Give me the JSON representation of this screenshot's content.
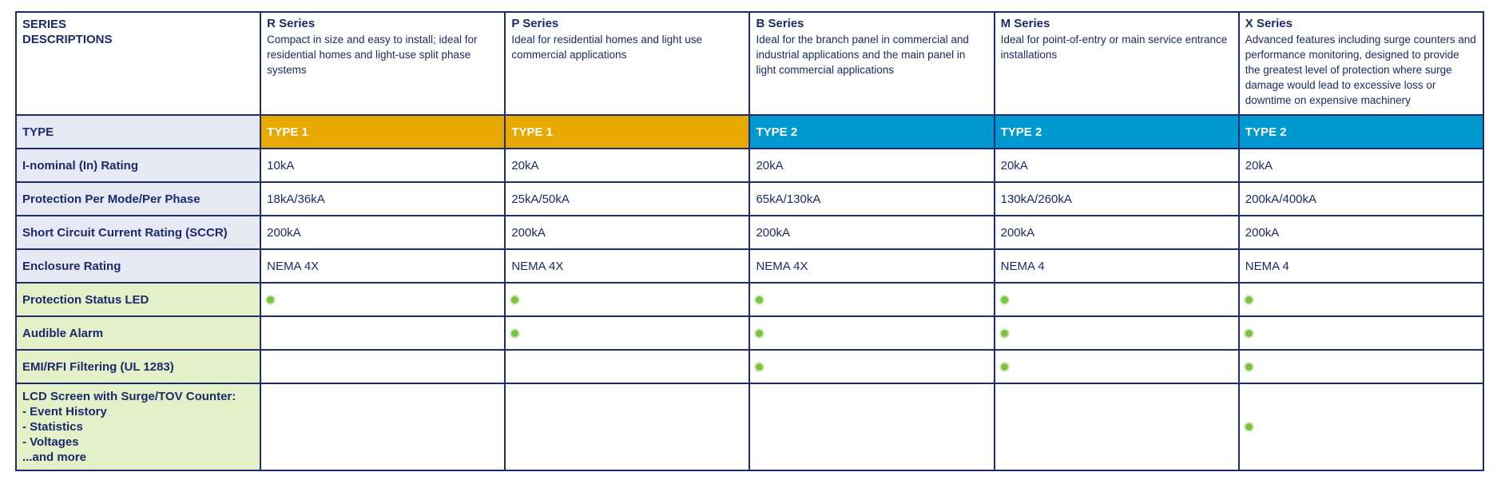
{
  "table": {
    "corner": [
      "SERIES",
      "DESCRIPTIONS"
    ],
    "series": [
      {
        "name": "R Series",
        "description": "Compact in size and easy to install; ideal for residential homes and light-use split phase systems"
      },
      {
        "name": "P Series",
        "description": "Ideal for residential homes and light use commercial applications"
      },
      {
        "name": "B Series",
        "description": "Ideal for the branch panel in commercial and industrial applications and the main panel in light commercial applications"
      },
      {
        "name": "M Series",
        "description": "Ideal for point-of-entry or main service entrance installations"
      },
      {
        "name": "X Series",
        "description": "Advanced features including surge counters and performance monitoring, designed to provide the greatest level of protection where surge damage would lead to excessive loss or downtime on expensive machinery"
      }
    ],
    "type_row": {
      "label": "TYPE",
      "values": [
        "TYPE 1",
        "TYPE 1",
        "TYPE 2",
        "TYPE 2",
        "TYPE 2"
      ],
      "colors": [
        "#e8a800",
        "#e8a800",
        "#0099cf",
        "#0099cf",
        "#0099cf"
      ]
    },
    "spec_rows": [
      {
        "label": "I-nominal (In) Rating",
        "values": [
          "10kA",
          "20kA",
          "20kA",
          "20kA",
          "20kA"
        ]
      },
      {
        "label": "Protection Per Mode/Per Phase",
        "values": [
          "18kA/36kA",
          "25kA/50kA",
          "65kA/130kA",
          "130kA/260kA",
          "200kA/400kA"
        ]
      },
      {
        "label": "Short Circuit Current Rating (SCCR)",
        "values": [
          "200kA",
          "200kA",
          "200kA",
          "200kA",
          "200kA"
        ]
      },
      {
        "label": "Enclosure Rating",
        "values": [
          "NEMA 4X",
          "NEMA 4X",
          "NEMA 4X",
          "NEMA 4",
          "NEMA 4"
        ]
      }
    ],
    "feature_rows": [
      {
        "label": [
          "Protection Status LED"
        ],
        "available": [
          true,
          true,
          true,
          true,
          true
        ]
      },
      {
        "label": [
          "Audible Alarm"
        ],
        "available": [
          false,
          true,
          true,
          true,
          true
        ]
      },
      {
        "label": [
          "EMI/RFI Filtering (UL 1283)"
        ],
        "available": [
          false,
          false,
          true,
          true,
          true
        ]
      },
      {
        "label": [
          "LCD Screen with Surge/TOV Counter:",
          "- Event History",
          "- Statistics",
          "- Voltages",
          "...and more"
        ],
        "available": [
          false,
          false,
          false,
          false,
          true
        ]
      }
    ]
  }
}
